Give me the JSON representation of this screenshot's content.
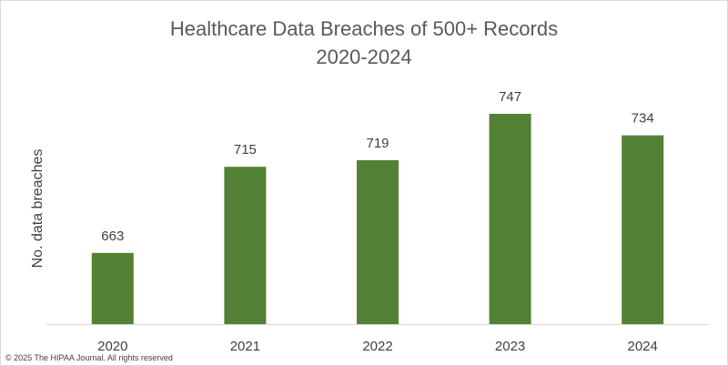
{
  "chart_data": {
    "type": "bar",
    "title": "Healthcare Data Breaches of 500+ Records",
    "subtitle": "2020-2024",
    "xlabel": "",
    "ylabel": "No. data breaches",
    "categories": [
      "2020",
      "2021",
      "2022",
      "2023",
      "2024"
    ],
    "values": [
      663,
      715,
      719,
      747,
      734
    ],
    "ylim": [
      620,
      760
    ],
    "grid": false,
    "legend": "none",
    "data_labels": true,
    "bar_color": "#538135"
  },
  "footer": {
    "copyright": "© 2025 The HIPAA Journal. All rights reserved"
  }
}
